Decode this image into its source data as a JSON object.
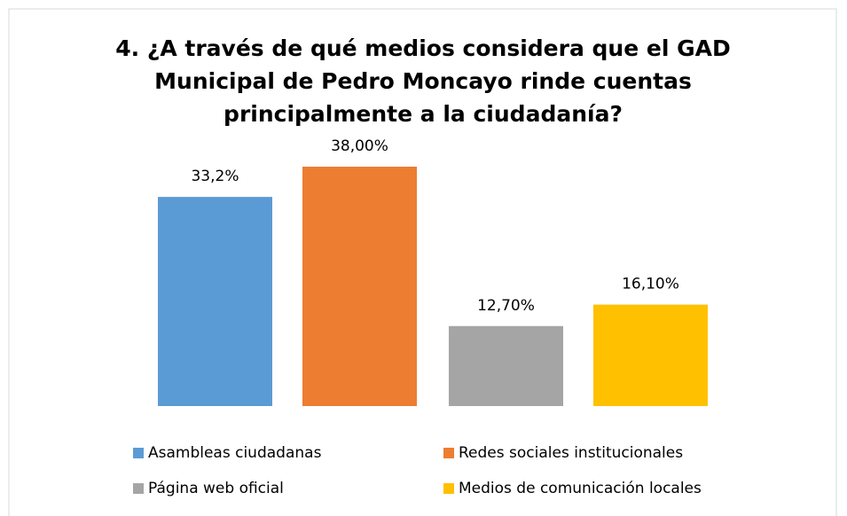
{
  "chart_data": {
    "type": "bar",
    "title": [
      "4. ¿A través de qué medios considera que el GAD",
      "Municipal de Pedro Moncayo rinde cuentas",
      "principalmente a la ciudadanía?"
    ],
    "series": [
      {
        "name": "Asambleas ciudadanas",
        "color": "#5b9bd5",
        "values": [
          33.2
        ],
        "value_labels": [
          "33,2%"
        ]
      },
      {
        "name": "Redes sociales institucionales",
        "color": "#ed7d31",
        "values": [
          38
        ],
        "value_labels": [
          "38,00%"
        ]
      },
      {
        "name": "Página web oficial",
        "color": "#a5a5a5",
        "values": [
          12.7
        ],
        "value_labels": [
          "12,70%"
        ]
      },
      {
        "name": "Medios de comunicación locales",
        "color": "#ffc000",
        "values": [
          16.1
        ],
        "value_labels": [
          "16,10%"
        ]
      }
    ]
  }
}
